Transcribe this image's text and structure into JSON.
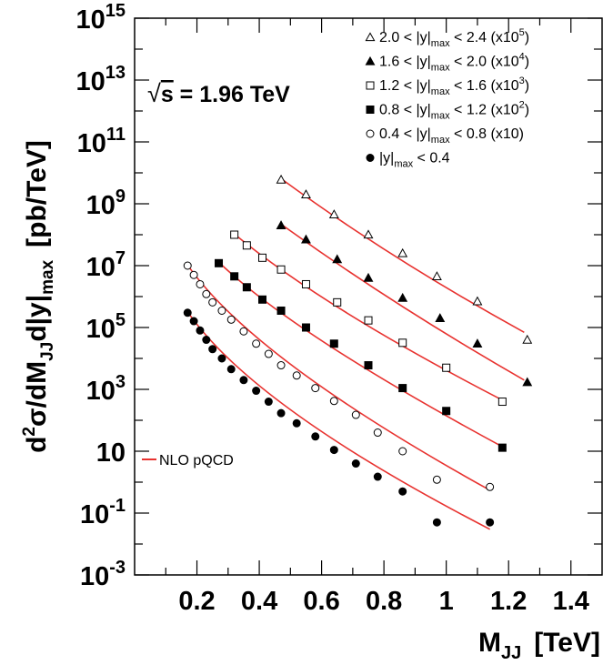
{
  "chart_data": {
    "type": "scatter",
    "xlabel": "M_JJ [TeV]",
    "ylabel": "d²σ/dM_JJ d|y|_max [pb/TeV]",
    "xlim": [
      0.0,
      1.5
    ],
    "ylim_log10": [
      -3,
      15
    ],
    "y_scale": "log",
    "x_ticks": [
      "0.2",
      "0.4",
      "0.6",
      "0.8",
      "1",
      "1.2",
      "1.4"
    ],
    "y_ticks": [
      {
        "base": "10",
        "exp": "15"
      },
      {
        "base": "10",
        "exp": "13"
      },
      {
        "base": "10",
        "exp": "11"
      },
      {
        "base": "10",
        "exp": "9"
      },
      {
        "base": "10",
        "exp": "7"
      },
      {
        "base": "10",
        "exp": "5"
      },
      {
        "base": "10",
        "exp": "3"
      },
      {
        "base": "10",
        "exp": ""
      },
      {
        "base": "10",
        "exp": "-1"
      },
      {
        "base": "10",
        "exp": "-3"
      }
    ],
    "annotation": "√s = 1.96 TeV",
    "legend_position": "top-right",
    "line_legend": "NLO pQCD",
    "line_color": "#e8322f",
    "series": [
      {
        "name": "2.0 < |y|max < 2.4 (x10^5)",
        "marker": "triangle-open",
        "x": [
          0.47,
          0.55,
          0.64,
          0.75,
          0.86,
          0.97,
          1.1,
          1.26
        ],
        "y": [
          6000000000.0,
          2000000000.0,
          450000000.0,
          100000000.0,
          25000000.0,
          4500000.0,
          700000.0,
          40000.0
        ],
        "fit_x": [
          0.47,
          1.25
        ],
        "fit_y": [
          6500000000.0,
          70000.0
        ]
      },
      {
        "name": "1.6 < |y|max < 2.0 (x10^4)",
        "marker": "triangle-filled",
        "x": [
          0.47,
          0.55,
          0.65,
          0.75,
          0.86,
          0.98,
          1.1,
          1.26
        ],
        "y": [
          200000000.0,
          70000000.0,
          16000000.0,
          4000000.0,
          900000.0,
          200000.0,
          30000.0,
          1700.0
        ],
        "fit_x": [
          0.47,
          1.25
        ],
        "fit_y": [
          220000000.0,
          2000.0
        ]
      },
      {
        "name": "1.2 < |y|max < 1.6 (x10^3)",
        "marker": "square-open",
        "x": [
          0.32,
          0.36,
          0.41,
          0.47,
          0.55,
          0.65,
          0.75,
          0.86,
          1.0,
          1.18
        ],
        "y": [
          100000000.0,
          45000000.0,
          18000000.0,
          7500000.0,
          2500000.0,
          650000.0,
          170000.0,
          32000.0,
          5000.0,
          400.0
        ],
        "fit_x": [
          0.32,
          1.18
        ],
        "fit_y": [
          105000000.0,
          450.0
        ]
      },
      {
        "name": "0.8 < |y|max < 1.2 (x10^2)",
        "marker": "square-filled",
        "x": [
          0.27,
          0.32,
          0.36,
          0.41,
          0.47,
          0.55,
          0.64,
          0.75,
          0.86,
          1.0,
          1.18
        ],
        "y": [
          12000000.0,
          4500000.0,
          2000000.0,
          800000.0,
          350000.0,
          100000.0,
          30000.0,
          6000.0,
          1100.0,
          200.0,
          13
        ],
        "fit_x": [
          0.27,
          1.18
        ],
        "fit_y": [
          13000000.0,
          14
        ]
      },
      {
        "name": "0.4 < |y|max < 0.8 (x10)",
        "marker": "circle-open",
        "x": [
          0.17,
          0.19,
          0.21,
          0.23,
          0.25,
          0.28,
          0.31,
          0.35,
          0.39,
          0.43,
          0.47,
          0.52,
          0.58,
          0.64,
          0.71,
          0.78,
          0.86,
          0.97,
          1.14
        ],
        "y": [
          10000000.0,
          5000000.0,
          2500000.0,
          1200000.0,
          650000.0,
          350000.0,
          180000.0,
          75000.0,
          30000.0,
          14000.0,
          6000.0,
          2800.0,
          1100.0,
          420.0,
          150.0,
          40,
          10,
          1.2,
          0.7
        ],
        "fit_x": [
          0.17,
          1.14
        ],
        "fit_y": [
          10500000.0,
          0.55
        ]
      },
      {
        "name": "|y|max < 0.4",
        "marker": "circle-filled",
        "x": [
          0.17,
          0.19,
          0.21,
          0.23,
          0.25,
          0.28,
          0.31,
          0.35,
          0.39,
          0.43,
          0.47,
          0.52,
          0.58,
          0.64,
          0.71,
          0.78,
          0.86,
          0.97,
          1.14
        ],
        "y": [
          300000.0,
          160000.0,
          80000.0,
          40000.0,
          20000.0,
          10000.0,
          4500.0,
          2000.0,
          900.0,
          400.0,
          170.0,
          80,
          30,
          11,
          4,
          1.5,
          0.5,
          0.05,
          0.05
        ],
        "fit_x": [
          0.17,
          1.14
        ],
        "fit_y": [
          320000.0,
          0.03
        ]
      }
    ],
    "legend_entries": [
      {
        "marker": "triangle-open",
        "pre": "2.0 < |y|",
        "sub": "max",
        "post": " < 2.4 (x10",
        "sup": "5",
        "end": ")"
      },
      {
        "marker": "triangle-filled",
        "pre": "1.6 < |y|",
        "sub": "max",
        "post": " < 2.0 (x10",
        "sup": "4",
        "end": ")"
      },
      {
        "marker": "square-open",
        "pre": "1.2 < |y|",
        "sub": "max",
        "post": " < 1.6 (x10",
        "sup": "3",
        "end": ")"
      },
      {
        "marker": "square-filled",
        "pre": "0.8 < |y|",
        "sub": "max",
        "post": " < 1.2 (x10",
        "sup": "2",
        "end": ")"
      },
      {
        "marker": "circle-open",
        "pre": "0.4 < |y|",
        "sub": "max",
        "post": " < 0.8 (x10)",
        "sup": "",
        "end": ""
      },
      {
        "marker": "circle-filled",
        "pre": "|y|",
        "sub": "max",
        "post": " < 0.4",
        "sup": "",
        "end": ""
      }
    ]
  }
}
